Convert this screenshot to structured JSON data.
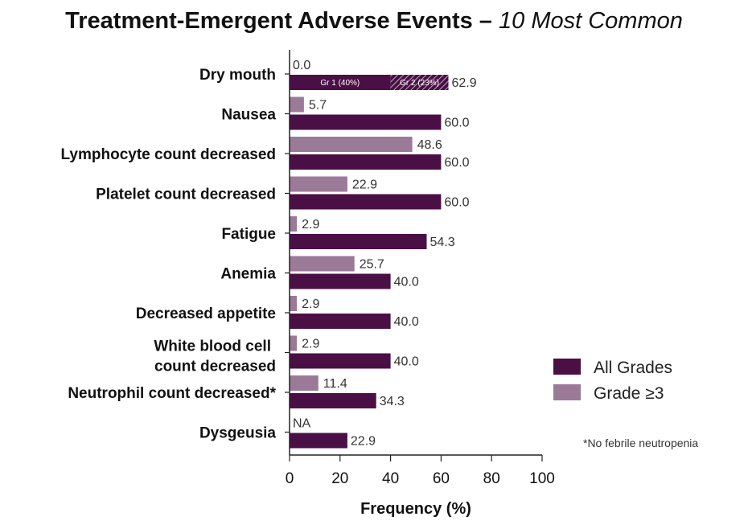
{
  "chart_data": {
    "type": "bar",
    "orientation": "horizontal",
    "title": "Treatment-Emergent Adverse Events –",
    "subtitle": "10 Most Common",
    "xlabel": "Frequency (%)",
    "xlim": [
      0,
      100
    ],
    "xticks": [
      "0",
      "20",
      "40",
      "60",
      "80",
      "100"
    ],
    "categories": [
      [
        "Dry mouth"
      ],
      [
        "Nausea"
      ],
      [
        "Lymphocyte count decreased"
      ],
      [
        "Platelet count decreased"
      ],
      [
        "Fatigue"
      ],
      [
        "Anemia"
      ],
      [
        "Decreased appetite"
      ],
      [
        "White blood cell",
        "count decreased"
      ],
      [
        "Neutrophil count decreased*"
      ],
      [
        "Dysgeusia"
      ]
    ],
    "series": [
      {
        "name": "All Grades",
        "color": "#4a0f45",
        "values": [
          62.9,
          60.0,
          60.0,
          60.0,
          54.3,
          40.0,
          40.0,
          40.0,
          34.3,
          22.9
        ],
        "labels": [
          "62.9",
          "60.0",
          "60.0",
          "60.0",
          "54.3",
          "40.0",
          "40.0",
          "40.0",
          "34.3",
          "22.9"
        ]
      },
      {
        "name": "Grade ≥3",
        "color": "#9b7a98",
        "values": [
          0.0,
          5.7,
          48.6,
          22.9,
          2.9,
          25.7,
          2.9,
          2.9,
          11.4,
          null
        ],
        "labels": [
          "0.0",
          "5.7",
          "48.6",
          "22.9",
          "2.9",
          "25.7",
          "2.9",
          "2.9",
          "11.4",
          "NA"
        ]
      }
    ],
    "dry_mouth_breakdown": [
      {
        "label": "Gr 1 (40%)",
        "value": 40
      },
      {
        "label": "Gr 2 (23%)",
        "value": 23,
        "pattern": "hatched"
      }
    ],
    "legend_position": "right",
    "footnote": "*No febrile neutropenia"
  }
}
